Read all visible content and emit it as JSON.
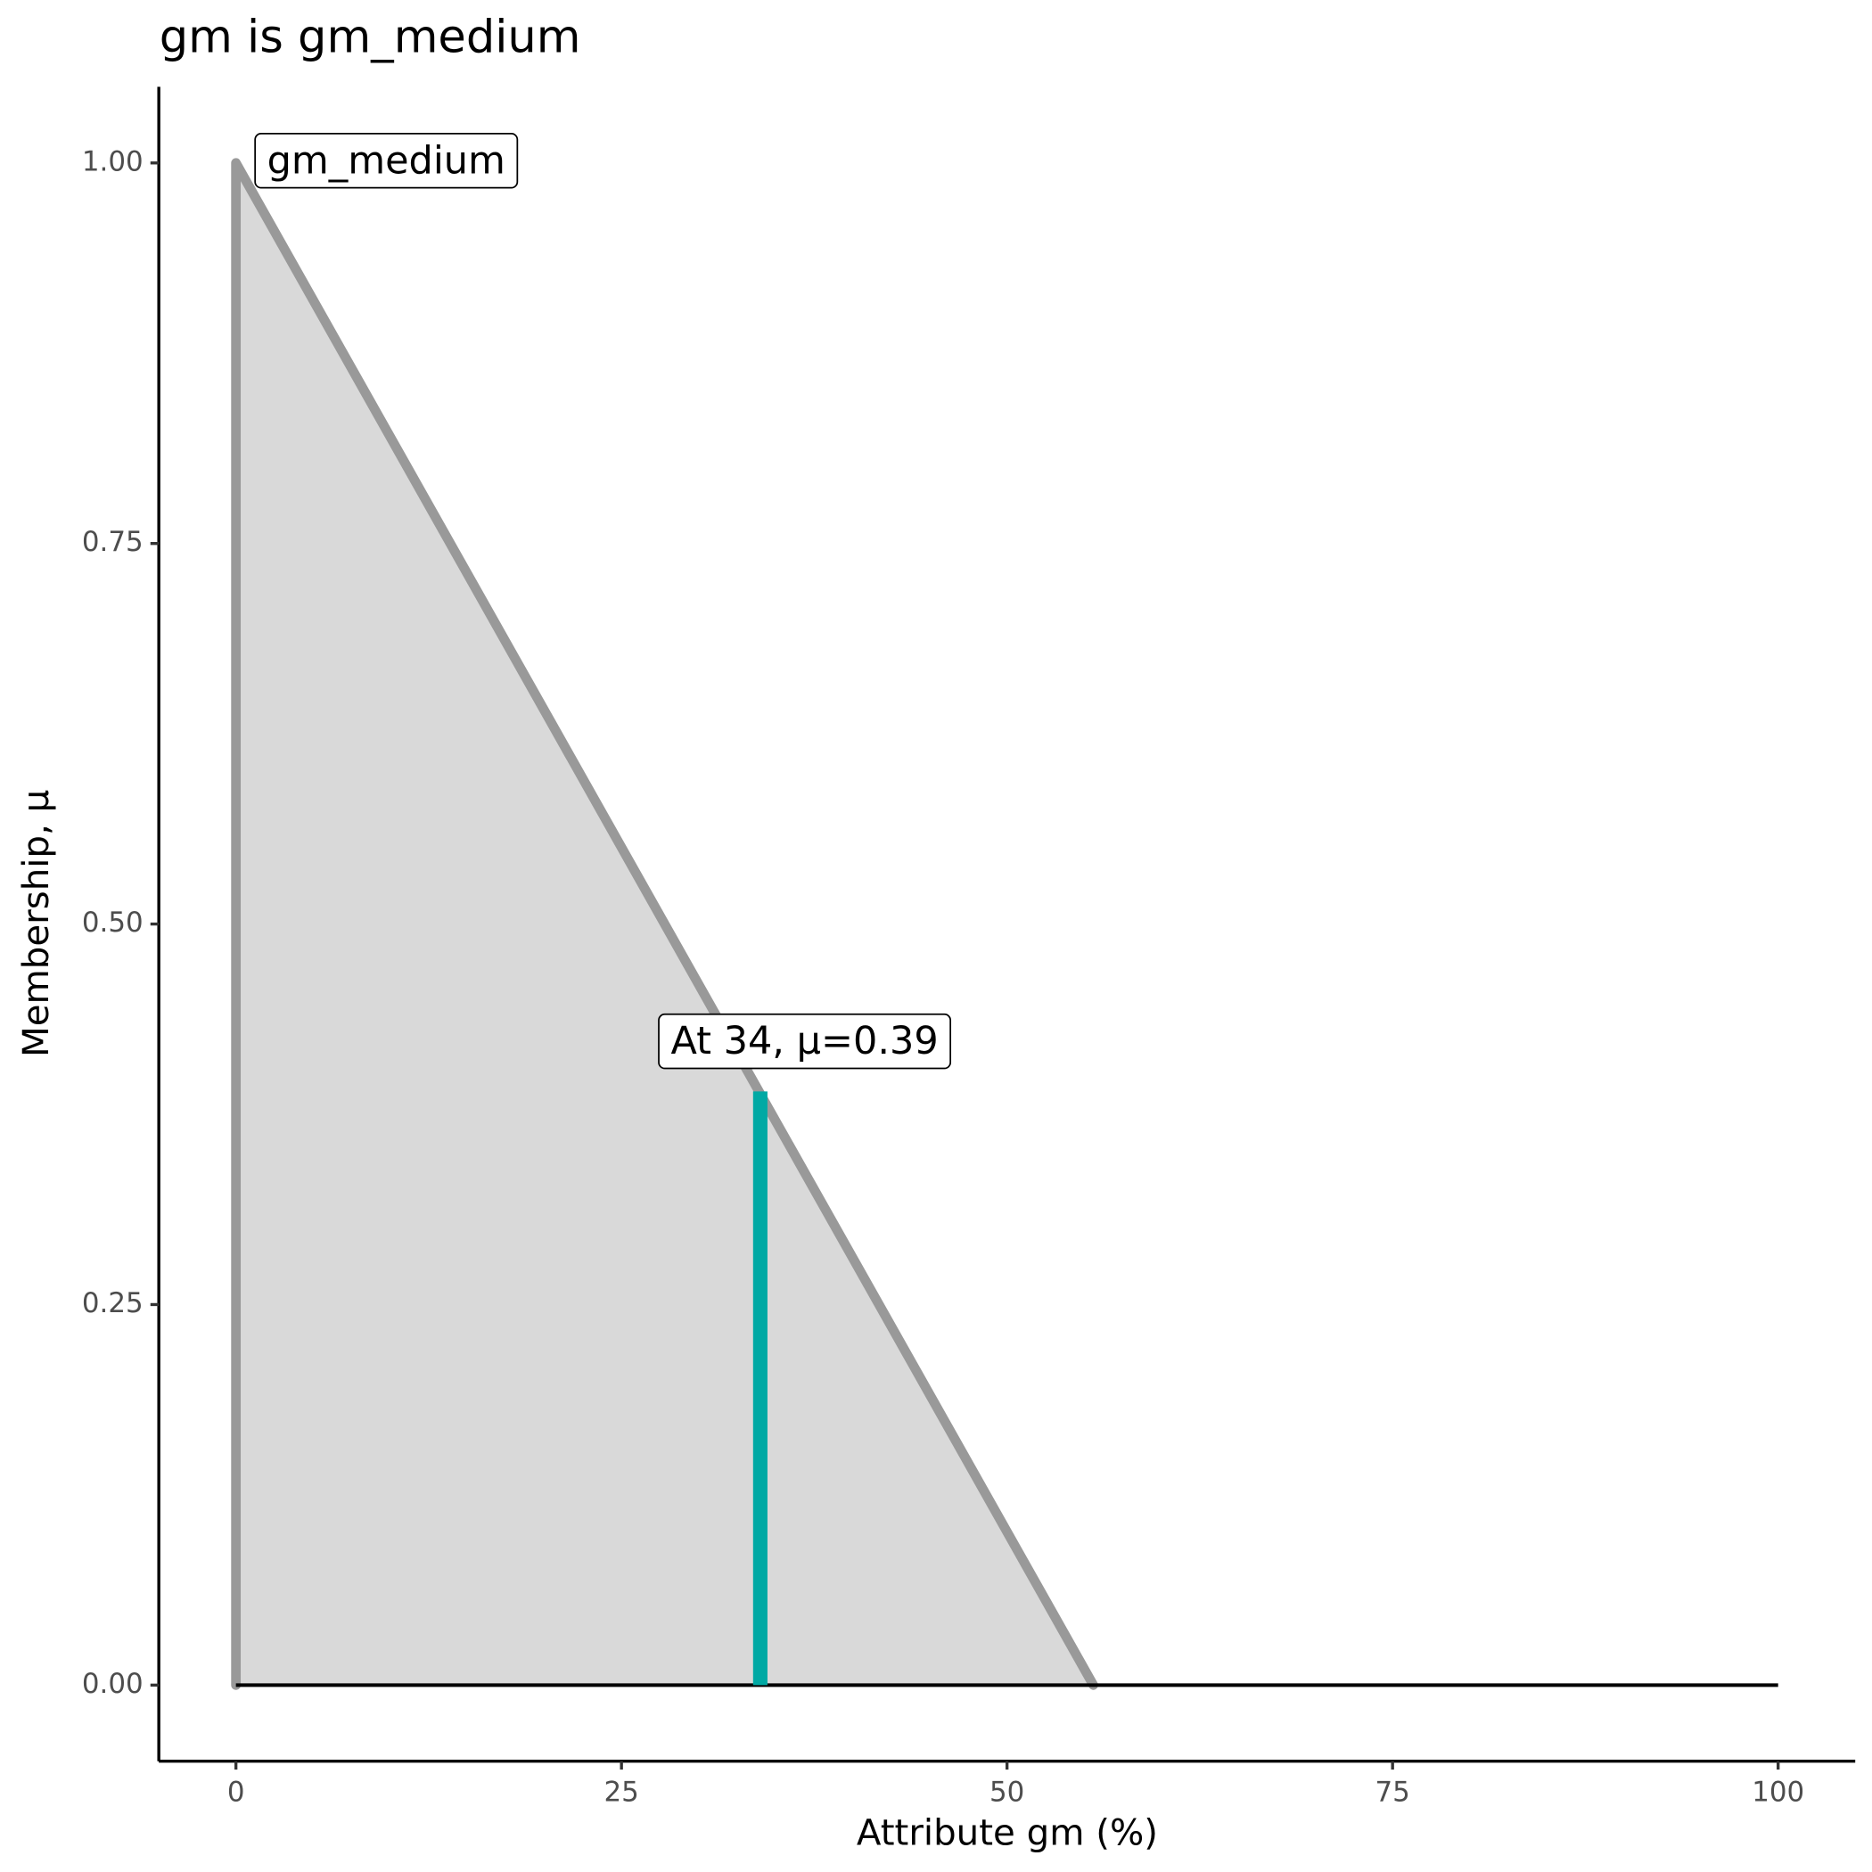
{
  "chart_data": {
    "type": "area",
    "title": "gm is gm_medium",
    "x_label": "Attribute gm (%)",
    "y_label": "Membership, μ",
    "xlim": [
      -5,
      105
    ],
    "ylim": [
      -0.05,
      1.05
    ],
    "xticks": [
      0,
      25,
      50,
      75,
      100
    ],
    "yticks": [
      {
        "value": 0,
        "label": "0.00"
      },
      {
        "value": 0.25,
        "label": "0.25"
      },
      {
        "value": 0.5,
        "label": "0.50"
      },
      {
        "value": 0.75,
        "label": "0.75"
      },
      {
        "value": 1,
        "label": "1.00"
      }
    ],
    "series": [
      {
        "x": [
          0,
          0,
          55.6
        ],
        "values": [
          0,
          1,
          0
        ],
        "color": "#999999",
        "fill": "#d9d9d9"
      },
      {
        "x": [
          0,
          100
        ],
        "values": [
          0,
          0
        ],
        "color": "#000000"
      }
    ],
    "marker": {
      "x": 34,
      "value": 0.39,
      "color": "#00a9a4"
    },
    "annotations": [
      "gm_medium",
      "At 34, μ=0.39"
    ]
  }
}
